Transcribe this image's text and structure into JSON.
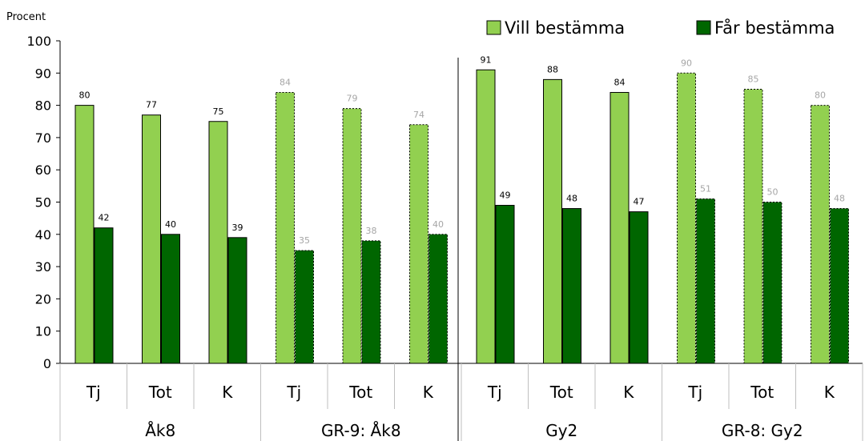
{
  "chart_data": {
    "type": "bar",
    "ylabel": "Procent",
    "ylim": [
      0,
      100
    ],
    "yticks": [
      0,
      10,
      20,
      30,
      40,
      50,
      60,
      70,
      80,
      90,
      100
    ],
    "grid": false,
    "legend_position": "top-right",
    "categories": [
      "Tj",
      "Tot",
      "K",
      "Tj",
      "Tot",
      "K",
      "Tj",
      "Tot",
      "K",
      "Tj",
      "Tot",
      "K"
    ],
    "groups": [
      {
        "label": "Åk8",
        "span": [
          0,
          2
        ]
      },
      {
        "label": "GR-9: Åk8",
        "span": [
          3,
          5
        ]
      },
      {
        "label": "Gy2",
        "span": [
          6,
          8
        ]
      },
      {
        "label": "GR-8: Gy2",
        "span": [
          9,
          11
        ]
      }
    ],
    "series": [
      {
        "name": "Vill bestämma",
        "color": "#92D050",
        "values": [
          80,
          77,
          75,
          84,
          79,
          74,
          91,
          88,
          84,
          90,
          85,
          80
        ]
      },
      {
        "name": "Får bestämma",
        "color": "#006600",
        "values": [
          42,
          40,
          39,
          35,
          38,
          40,
          49,
          48,
          47,
          51,
          50,
          48
        ]
      }
    ],
    "dashed_groups": [
      1,
      3
    ],
    "label_color_normal": "#000000",
    "label_color_dashed": "#A6A6A6"
  }
}
